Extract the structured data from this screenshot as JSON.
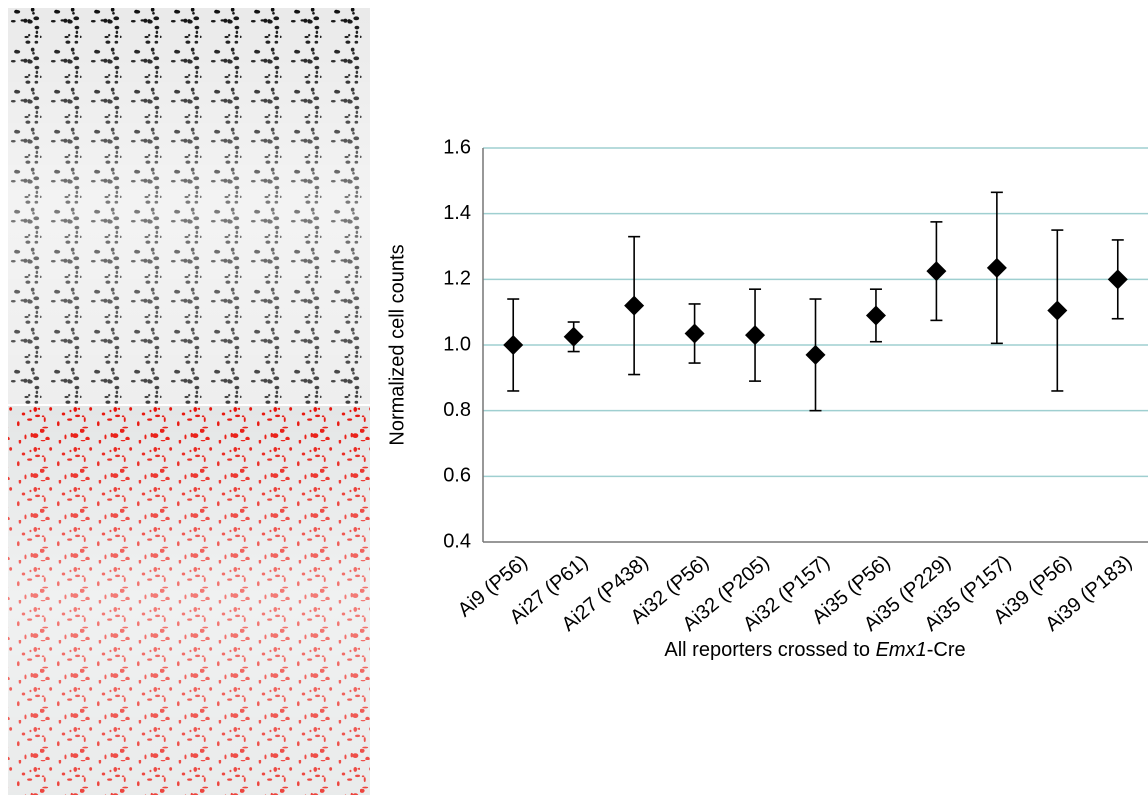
{
  "chart_data": {
    "type": "point",
    "y_label": "Normalized cell counts",
    "x_label_parts": [
      "All reporters crossed to ",
      "Emx1",
      "-Cre"
    ],
    "categories": [
      "Ai9 (P56)",
      "Ai27 (P61)",
      "Ai27 (P438)",
      "Ai32 (P56)",
      "Ai32 (P205)",
      "Ai32 (P157)",
      "Ai35 (P56)",
      "Ai35 (P229)",
      "Ai35 (P157)",
      "Ai39 (P56)",
      "Ai39 (P183)"
    ],
    "values": [
      1.0,
      1.025,
      1.12,
      1.035,
      1.03,
      0.97,
      1.09,
      1.225,
      1.235,
      1.105,
      1.2
    ],
    "errors": [
      0.14,
      0.045,
      0.21,
      0.09,
      0.14,
      0.17,
      0.08,
      0.15,
      0.23,
      0.245,
      0.12
    ],
    "color": "#000000",
    "ylim": [
      0.4,
      1.6
    ],
    "yticks": [
      0.4,
      0.6,
      0.8,
      {
        "value": 1.0,
        "label": "1.0"
      },
      1.2,
      1.4,
      1.6
    ],
    "grid": true,
    "grid_color": "#9fcfd0"
  }
}
